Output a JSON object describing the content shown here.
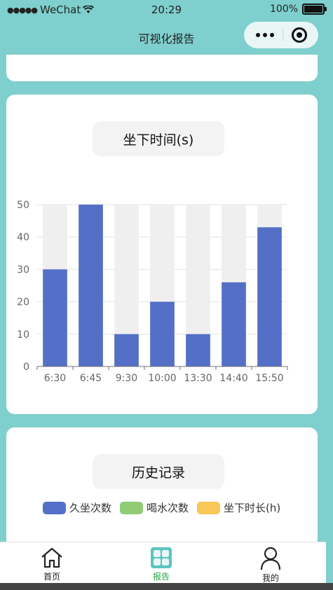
{
  "status_bar": {
    "carrier": "WeChat",
    "time": "20:29",
    "battery": "100%"
  },
  "nav": {
    "title": "可视化报告"
  },
  "chart_card": {
    "title": "坐下时间(s)"
  },
  "chart_data": {
    "type": "bar",
    "categories": [
      "6:30",
      "6:45",
      "9:30",
      "10:00",
      "13:30",
      "14:40",
      "15:50"
    ],
    "values": [
      30,
      50,
      10,
      20,
      10,
      26,
      43
    ],
    "ylim": [
      0,
      50
    ],
    "yticks": [
      0,
      10,
      20,
      30,
      40,
      50
    ],
    "bar_color": "#5470c6",
    "background_bar_color": "#efefef",
    "grid": true
  },
  "history_card": {
    "title": "历史记录",
    "legend": [
      {
        "label": "久坐次数",
        "color": "#5470c6"
      },
      {
        "label": "喝水次数",
        "color": "#91cc75"
      },
      {
        "label": "坐下时长(h)",
        "color": "#fac858"
      }
    ]
  },
  "tabbar": {
    "items": [
      {
        "label": "首页",
        "icon": "home-icon",
        "active": false
      },
      {
        "label": "报告",
        "icon": "report-grid-icon",
        "active": true
      },
      {
        "label": "我的",
        "icon": "user-icon",
        "active": false
      }
    ],
    "active_color": "#28a745"
  }
}
